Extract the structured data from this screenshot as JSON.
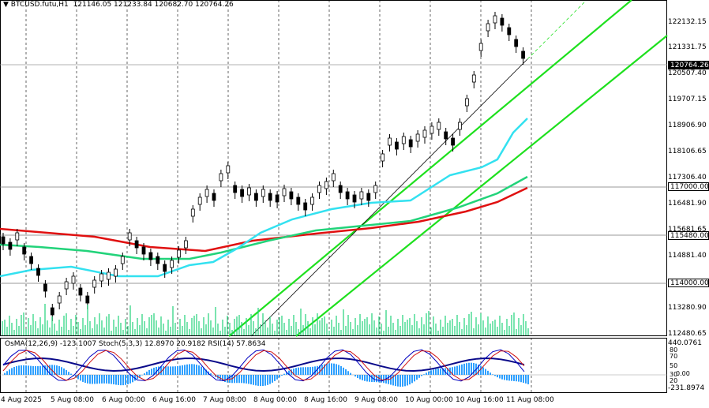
{
  "chart": {
    "symbol": "BTCUSD.futu,H1",
    "ohlc": "121146.05 121233.84 120682.70 120764.26",
    "price_axis": [
      "122132.15",
      "121331.75",
      "120507.40",
      "119707.15",
      "118906.90",
      "118106.65",
      "117306.40",
      "116481.90",
      "115681.65",
      "114881.40",
      "113280.90",
      "112480.65"
    ],
    "level_tags": [
      {
        "value": "120764.26",
        "current": true
      },
      {
        "value": "117000.00",
        "current": false
      },
      {
        "value": "115480.00",
        "current": false
      },
      {
        "value": "114000.00",
        "current": false
      }
    ],
    "time_axis": [
      "4 Aug 2025",
      "5 Aug 08:00",
      "6 Aug 00:00",
      "6 Aug 16:00",
      "7 Aug 08:00",
      "8 Aug 00:00",
      "8 Aug 16:00",
      "9 Aug 08:00",
      "10 Aug 00:00",
      "10 Aug 16:00",
      "11 Aug 08:00"
    ],
    "colors": {
      "ema_short": "#33e1f0",
      "ema_mid": "#22d37a",
      "ema_long": "#e01010",
      "channel": "#1ee01e",
      "candles": "#000000",
      "osma": "#2ea0ff",
      "rsi": "#0a0a8a",
      "stoch_main": "#0000c0",
      "stoch_signal": "#d01010"
    }
  },
  "oscillator": {
    "label": "OsMA(12,26,9) -123.1007  Stoch(5,3,3) 12.8970 20.9182  RSI(14) 57.8634",
    "axis": [
      "440.0761",
      "80",
      "70",
      "50",
      "30",
      "20",
      "0.00",
      "-231.8974"
    ]
  }
}
